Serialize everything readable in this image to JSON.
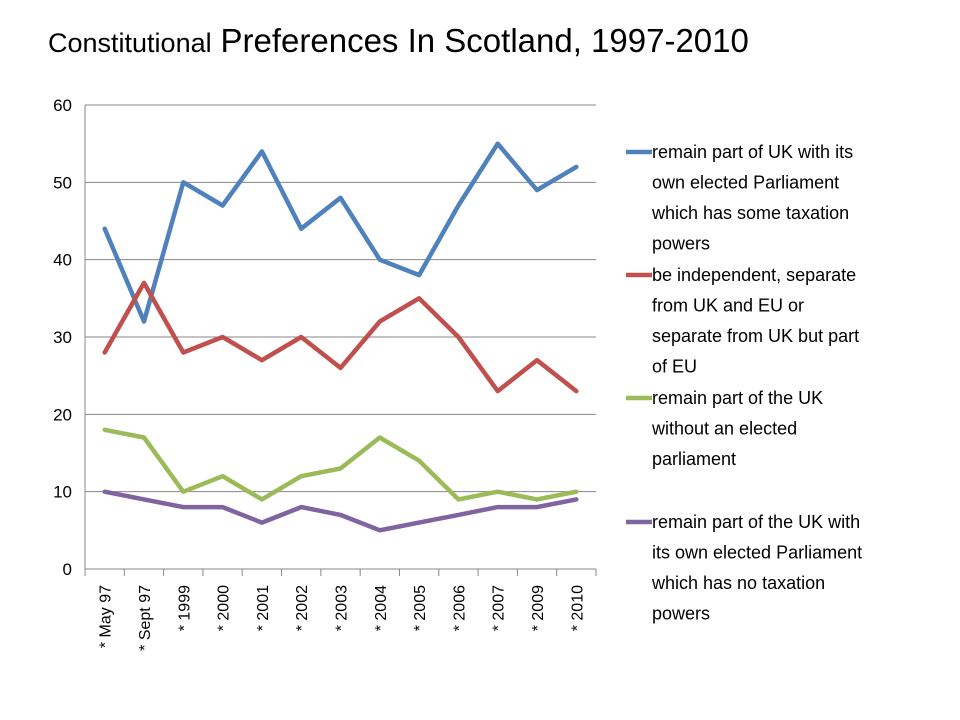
{
  "title_part1": "Constitutional",
  "title_part2": "Preferences In Scotland, 1997-2010",
  "chart_data": {
    "type": "line",
    "title": "Constitutional Preferences In Scotland, 1997-2010",
    "categories": [
      "* May 97",
      "* Sept 97",
      "* 1999",
      "* 2000",
      "* 2001",
      "* 2002",
      "* 2003",
      "* 2004",
      "* 2005",
      "* 2006",
      "* 2007",
      "* 2009",
      "* 2010"
    ],
    "ylim": [
      0,
      60
    ],
    "yticks": [
      0,
      10,
      20,
      30,
      40,
      50,
      60
    ],
    "grid": true,
    "legend_position": "right",
    "series": [
      {
        "name": "remain part of UK with its own elected Parliament which has some taxation powers",
        "legend_lines": [
          "remain part of UK with its",
          "own elected Parliament",
          "which has some taxation",
          "powers"
        ],
        "color": "#4F81BD",
        "values": [
          44,
          32,
          50,
          47,
          54,
          44,
          48,
          40,
          38,
          47,
          55,
          49,
          52
        ]
      },
      {
        "name": "be independent, separate from UK and EU or separate from UK but part of EU",
        "legend_lines": [
          "be independent, separate",
          "from UK and EU or",
          "separate from UK but part",
          "of EU"
        ],
        "color": "#C0504D",
        "values": [
          28,
          37,
          28,
          30,
          27,
          30,
          26,
          32,
          35,
          30,
          23,
          27,
          23
        ]
      },
      {
        "name": "remain part of the UK without an elected parliament",
        "legend_lines": [
          "remain part of the UK",
          "without an elected",
          "parliament"
        ],
        "color": "#9BBB59",
        "values": [
          18,
          17,
          10,
          12,
          9,
          12,
          13,
          17,
          14,
          9,
          10,
          9,
          10
        ]
      },
      {
        "name": "remain part of the UK with its own elected Parliament which has no taxation powers",
        "legend_lines": [
          "remain part of the UK with",
          "its own elected Parliament",
          "which has no taxation",
          "powers"
        ],
        "color": "#8064A2",
        "values": [
          10,
          9,
          8,
          8,
          6,
          8,
          7,
          5,
          6,
          7,
          8,
          8,
          9
        ]
      }
    ]
  }
}
